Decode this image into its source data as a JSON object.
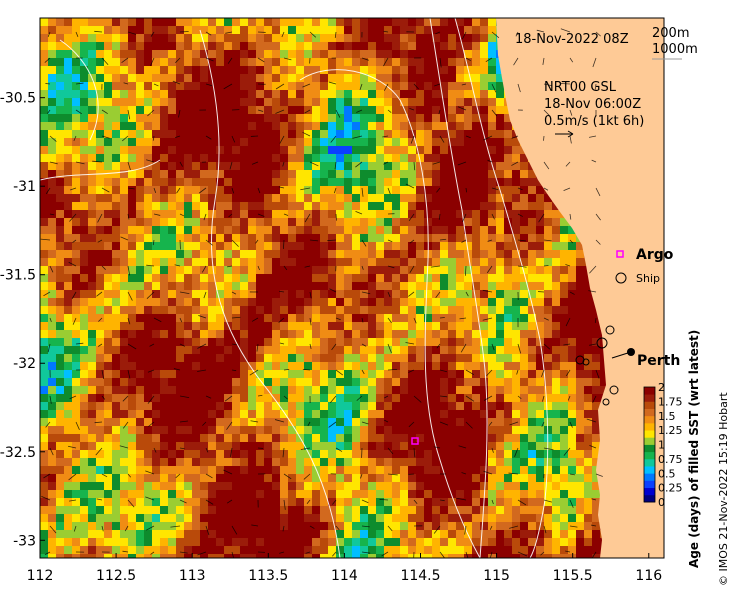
{
  "map": {
    "date_label": "18-Nov-2022 08Z",
    "contour_200": "200m",
    "contour_1000": "1000m",
    "current_source": "NRT00 GSL",
    "current_time": "18-Nov 06:00Z",
    "current_scale": "0.5m/s (1kt 6h)",
    "legend_argo": "Argo",
    "legend_ship": "Ship",
    "place_perth": "Perth",
    "colorbar_title": "Age (days) of filled SST (wrt latest)",
    "credit": "© IMOS 21-Nov-2022 15:19 Hobart",
    "colors": {
      "land": "#FECA96",
      "argo": "#FF00FF"
    }
  },
  "chart_data": {
    "type": "heatmap",
    "title": "18-Nov-2022 08Z",
    "xlabel": "",
    "ylabel": "",
    "xlim": [
      112,
      116.1
    ],
    "ylim": [
      -33.1,
      -30.05
    ],
    "x_ticks": [
      "112",
      "112.5",
      "113",
      "113.5",
      "114",
      "114.5",
      "115",
      "115.5",
      "116"
    ],
    "y_ticks": [
      "-30.5",
      "-31",
      "-31.5",
      "-32",
      "-32.5",
      "-33"
    ],
    "colorbar": {
      "label": "Age (days) of filled SST (wrt latest)",
      "range": [
        0,
        2
      ],
      "ticks": [
        "2",
        "1.75",
        "1.5",
        "1.25",
        "1",
        "0.75",
        "0.5",
        "0.25",
        "0"
      ]
    },
    "markers": [
      {
        "name": "Perth",
        "lon": 115.86,
        "lat": -31.95
      },
      {
        "name": "Argo",
        "lon": 114.45,
        "lat": -32.45
      }
    ]
  }
}
